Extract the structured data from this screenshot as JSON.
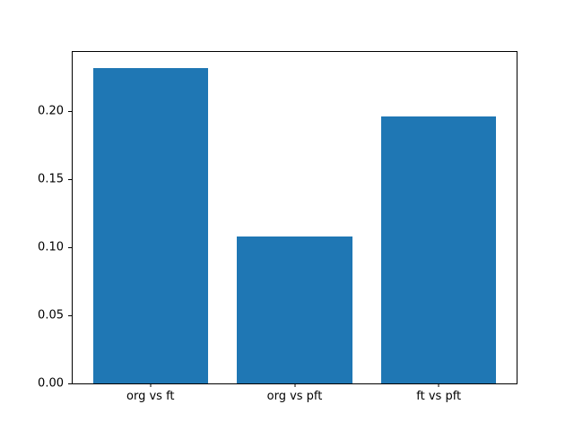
{
  "chart_data": {
    "type": "bar",
    "title": "",
    "xlabel": "",
    "ylabel": "",
    "categories": [
      "org vs ft",
      "org vs pft",
      "ft vs pft"
    ],
    "values": [
      0.232,
      0.108,
      0.196
    ],
    "ylim": [
      0,
      0.2436
    ],
    "xlim": [
      -0.54,
      2.54
    ],
    "bar_width": 0.8,
    "yticks": [
      {
        "value": 0.0,
        "label": "0.00"
      },
      {
        "value": 0.05,
        "label": "0.05"
      },
      {
        "value": 0.1,
        "label": "0.10"
      },
      {
        "value": 0.15,
        "label": "0.15"
      },
      {
        "value": 0.2,
        "label": "0.20"
      }
    ],
    "bar_color": "#1f77b4",
    "background_color": "#ffffff",
    "spine_color": "#000000",
    "grid": false,
    "legend": null
  }
}
